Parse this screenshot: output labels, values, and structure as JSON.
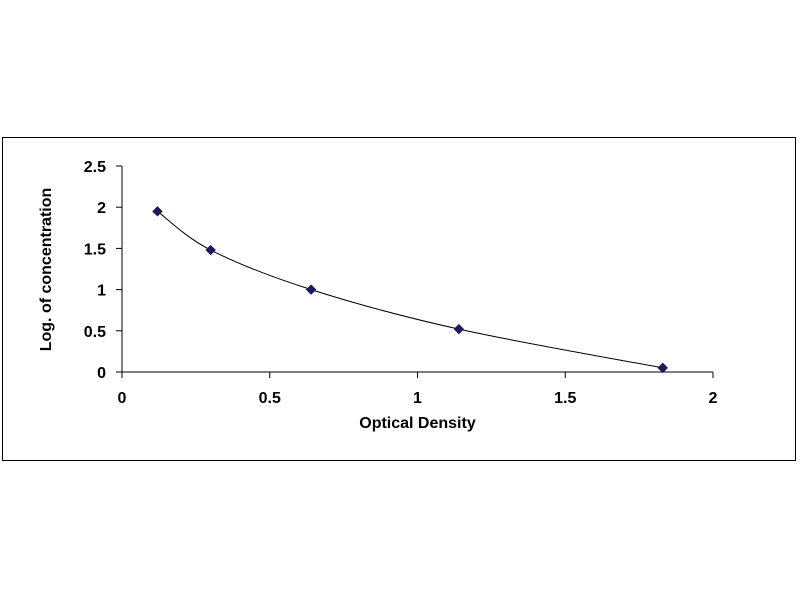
{
  "chart_data": {
    "type": "scatter",
    "title": "",
    "xlabel": "Optical Density",
    "ylabel": "Log. of concentration",
    "xlim": [
      0,
      2
    ],
    "ylim": [
      0,
      2.5
    ],
    "x_ticks": [
      "0",
      "0.5",
      "1",
      "1.5",
      "2"
    ],
    "y_ticks": [
      "0",
      "0.5",
      "1",
      "1.5",
      "2",
      "2.5"
    ],
    "grid": false,
    "legend": "none",
    "marker": "diamond",
    "colors": {
      "marker": "#1a1a5e",
      "curve": "#000000",
      "axis": "#000000"
    },
    "series": [
      {
        "x": [
          0.12,
          0.3,
          0.64,
          1.14,
          1.83
        ],
        "y": [
          1.95,
          1.48,
          1.0,
          0.52,
          0.05
        ]
      }
    ]
  }
}
